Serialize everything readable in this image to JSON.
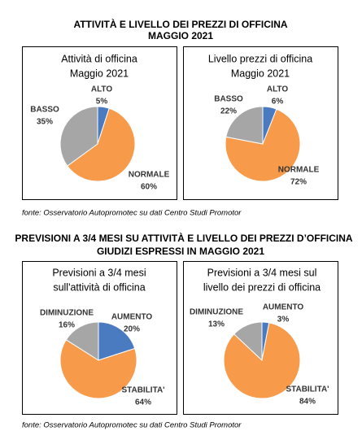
{
  "sections": [
    {
      "title": [
        "ATTIVITÀ E LIVELLO DEI PREZZI DI OFFICINA",
        "MAGGIO 2021"
      ],
      "source": "fonte: Osservatorio Autopromotec su dati Centro Studi Promotor"
    },
    {
      "title": [
        "PREVISIONI A 3/4 MESI SU ATTIVITÀ E LIVELLO DEI PREZZI D’OFFICINA",
        "GIUDIZI ESPRESSI IN MAGGIO 2021"
      ],
      "source": "fonte: Osservatorio Autopromotec su dati Centro Studi Promotor"
    }
  ],
  "chart_data": [
    {
      "type": "pie",
      "title": [
        "Attività di officina",
        "Maggio 2021"
      ],
      "categories": [
        "ALTO",
        "NORMALE",
        "BASSO"
      ],
      "values": [
        5,
        60,
        35
      ],
      "value_labels": [
        "5%",
        "60%",
        "35%"
      ],
      "colors": [
        "#4a7ac0",
        "#f79a4a",
        "#a6a6a6"
      ]
    },
    {
      "type": "pie",
      "title": [
        "Livello prezzi di officina",
        "Maggio 2021"
      ],
      "categories": [
        "ALTO",
        "NORMALE",
        "BASSO"
      ],
      "values": [
        6,
        72,
        22
      ],
      "value_labels": [
        "6%",
        "72%",
        "22%"
      ],
      "colors": [
        "#4a7ac0",
        "#f79a4a",
        "#a6a6a6"
      ]
    },
    {
      "type": "pie",
      "title": [
        "Previsioni a 3/4 mesi",
        "sull'attività di officina"
      ],
      "categories": [
        "AUMENTO",
        "STABILITA'",
        "DIMINUZIONE"
      ],
      "values": [
        20,
        64,
        16
      ],
      "value_labels": [
        "20%",
        "64%",
        "16%"
      ],
      "colors": [
        "#4a7ac0",
        "#f79a4a",
        "#a6a6a6"
      ]
    },
    {
      "type": "pie",
      "title": [
        "Previsioni a 3/4 mesi sul",
        "livello dei prezzi di officina"
      ],
      "categories": [
        "AUMENTO",
        "STABILITA'",
        "DIMINUZIONE"
      ],
      "values": [
        3,
        84,
        13
      ],
      "value_labels": [
        "3%",
        "84%",
        "13%"
      ],
      "colors": [
        "#4a7ac0",
        "#f79a4a",
        "#a6a6a6"
      ]
    }
  ]
}
